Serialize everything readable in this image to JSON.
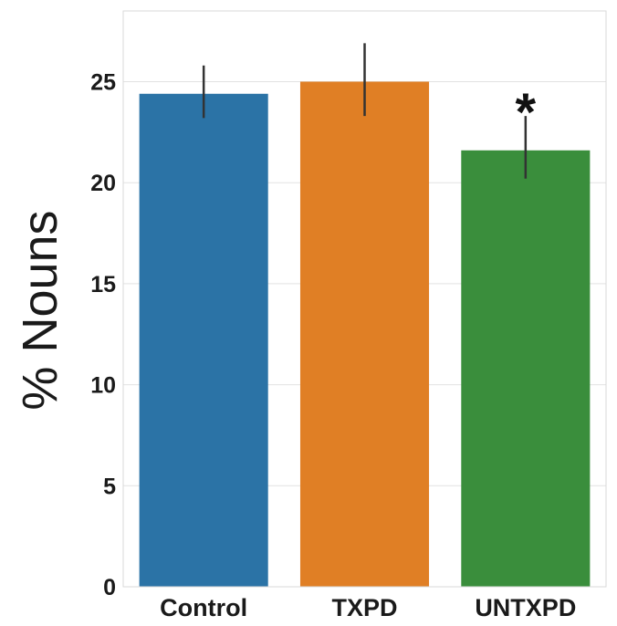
{
  "chart_data": {
    "type": "bar",
    "title": "",
    "xlabel": "",
    "ylabel": "% Nouns",
    "categories": [
      "Control",
      "TXPD",
      "UNTXPD"
    ],
    "values": [
      24.4,
      25.0,
      21.6
    ],
    "error_bars": [
      {
        "low": 23.2,
        "high": 25.8
      },
      {
        "low": 23.3,
        "high": 26.9
      },
      {
        "low": 20.2,
        "high": 23.3
      }
    ],
    "colors": [
      "#2b73a6",
      "#e07f25",
      "#3a8e3c"
    ],
    "ylim": [
      0,
      28.5
    ],
    "yticks": [
      "0",
      "5",
      "10",
      "15",
      "20",
      "25"
    ],
    "grid": true,
    "legend": "none",
    "annotations": [
      {
        "category": "UNTXPD",
        "text": "*"
      }
    ]
  }
}
